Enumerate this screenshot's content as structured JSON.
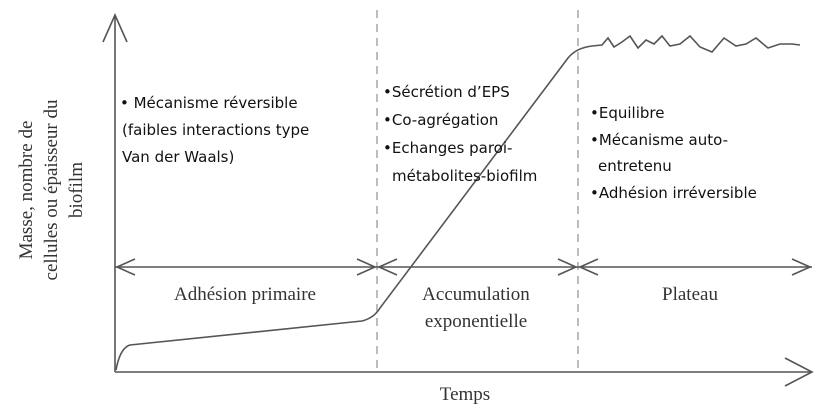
{
  "axes": {
    "y_label": [
      "Masse, nombre de",
      "cellules ou épaisseur du",
      "biofilm"
    ],
    "x_label": "Temps"
  },
  "phases": [
    {
      "label": [
        "Adhésion primaire"
      ]
    },
    {
      "label": [
        "Accumulation",
        "exponentielle"
      ]
    },
    {
      "label": [
        "Plateau"
      ]
    }
  ],
  "notes": [
    {
      "lines": [
        "• Mécanisme réversible",
        "(faibles interactions type",
        "Van der Waals)"
      ]
    },
    {
      "lines": [
        "•Sécrétion d’EPS",
        "•Co-agrégation",
        "•Echanges paroi-",
        "métabolites-biofilm"
      ]
    },
    {
      "lines": [
        "•Equilibre",
        "•Mécanisme auto-",
        "entretenu",
        "•Adhésion irréversible"
      ]
    }
  ]
}
